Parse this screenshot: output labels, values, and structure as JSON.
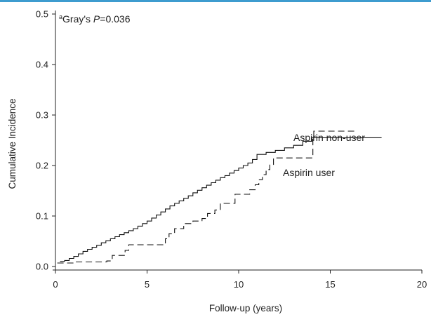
{
  "chart_data": {
    "type": "line",
    "title": "",
    "xlabel": "Follow-up (years)",
    "ylabel": "Cumulative Incidence",
    "xlim": [
      0,
      20
    ],
    "ylim": [
      0,
      0.5
    ],
    "x_ticks": [
      "0",
      "5",
      "10",
      "15",
      "20"
    ],
    "y_ticks": [
      "0.0",
      "0.1",
      "0.2",
      "0.3",
      "0.4",
      "0.5"
    ],
    "grid": false,
    "annotation": {
      "superscript": "a",
      "prefix": "Gray's ",
      "italic": "P",
      "suffix": "=0.036"
    },
    "series": [
      {
        "name": "Aspirin non-user",
        "style": "solid",
        "color": "#111111",
        "points": [
          [
            0.25,
            0.01
          ],
          [
            0.5,
            0.012
          ],
          [
            0.75,
            0.016
          ],
          [
            1.0,
            0.02
          ],
          [
            1.25,
            0.025
          ],
          [
            1.5,
            0.03
          ],
          [
            1.75,
            0.034
          ],
          [
            2.0,
            0.038
          ],
          [
            2.25,
            0.042
          ],
          [
            2.5,
            0.047
          ],
          [
            2.75,
            0.051
          ],
          [
            3.0,
            0.055
          ],
          [
            3.25,
            0.059
          ],
          [
            3.5,
            0.063
          ],
          [
            3.75,
            0.067
          ],
          [
            4.0,
            0.071
          ],
          [
            4.25,
            0.075
          ],
          [
            4.5,
            0.08
          ],
          [
            4.75,
            0.085
          ],
          [
            5.0,
            0.09
          ],
          [
            5.25,
            0.096
          ],
          [
            5.5,
            0.102
          ],
          [
            5.75,
            0.108
          ],
          [
            6.0,
            0.114
          ],
          [
            6.25,
            0.12
          ],
          [
            6.5,
            0.125
          ],
          [
            6.75,
            0.13
          ],
          [
            7.0,
            0.135
          ],
          [
            7.25,
            0.14
          ],
          [
            7.5,
            0.146
          ],
          [
            7.75,
            0.151
          ],
          [
            8.0,
            0.156
          ],
          [
            8.25,
            0.161
          ],
          [
            8.5,
            0.166
          ],
          [
            8.75,
            0.171
          ],
          [
            9.0,
            0.176
          ],
          [
            9.25,
            0.18
          ],
          [
            9.5,
            0.185
          ],
          [
            9.75,
            0.19
          ],
          [
            10.0,
            0.195
          ],
          [
            10.25,
            0.2
          ],
          [
            10.5,
            0.205
          ],
          [
            10.75,
            0.212
          ],
          [
            11.0,
            0.222
          ],
          [
            11.5,
            0.226
          ],
          [
            12.0,
            0.23
          ],
          [
            12.5,
            0.235
          ],
          [
            13.0,
            0.24
          ],
          [
            13.5,
            0.248
          ],
          [
            14.0,
            0.255
          ],
          [
            16.0,
            0.255
          ],
          [
            17.8,
            0.255
          ]
        ]
      },
      {
        "name": "Aspirin user",
        "style": "dashed",
        "color": "#111111",
        "points": [
          [
            0.1,
            0.007
          ],
          [
            1.0,
            0.009
          ],
          [
            2.8,
            0.011
          ],
          [
            3.1,
            0.022
          ],
          [
            3.8,
            0.032
          ],
          [
            4.0,
            0.043
          ],
          [
            5.2,
            0.043
          ],
          [
            5.4,
            0.043
          ],
          [
            5.9,
            0.043
          ],
          [
            6.0,
            0.055
          ],
          [
            6.2,
            0.065
          ],
          [
            6.5,
            0.075
          ],
          [
            7.0,
            0.085
          ],
          [
            7.5,
            0.09
          ],
          [
            8.0,
            0.095
          ],
          [
            8.3,
            0.105
          ],
          [
            8.7,
            0.112
          ],
          [
            9.0,
            0.125
          ],
          [
            9.7,
            0.125
          ],
          [
            9.8,
            0.143
          ],
          [
            10.5,
            0.143
          ],
          [
            10.6,
            0.152
          ],
          [
            10.9,
            0.162
          ],
          [
            11.1,
            0.172
          ],
          [
            11.3,
            0.182
          ],
          [
            11.5,
            0.192
          ],
          [
            11.7,
            0.202
          ],
          [
            11.9,
            0.215
          ],
          [
            12.2,
            0.215
          ],
          [
            13.0,
            0.215
          ],
          [
            13.9,
            0.215
          ],
          [
            14.05,
            0.258
          ],
          [
            14.1,
            0.268
          ],
          [
            16.5,
            0.268
          ]
        ]
      }
    ]
  }
}
